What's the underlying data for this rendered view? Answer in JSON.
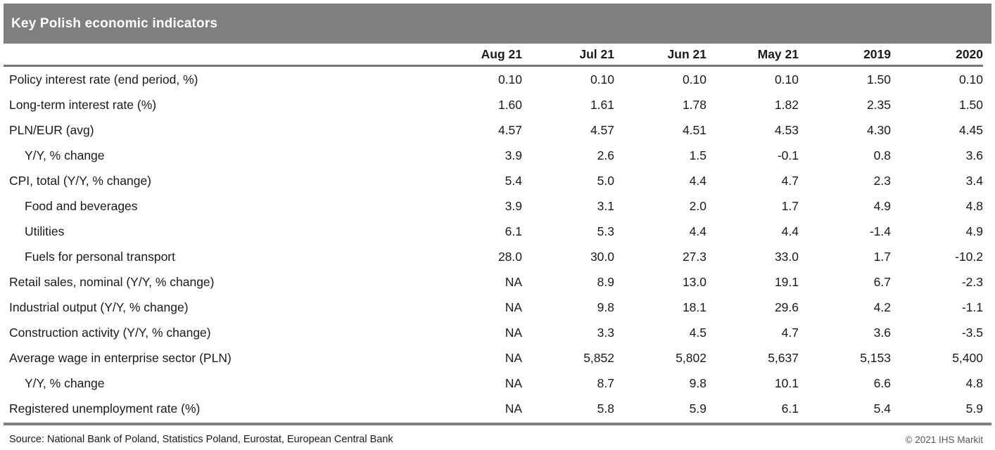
{
  "title": "Key Polish economic indicators",
  "colors": {
    "title_bar": "#7f7f7f",
    "rule_line": "#767676",
    "text": "#1a1a1a",
    "copyright": "#595959"
  },
  "table": {
    "columns": [
      "Aug 21",
      "Jul 21",
      "Jun 21",
      "May 21",
      "2019",
      "2020"
    ],
    "rows": [
      {
        "label": "Policy interest rate (end period, %)",
        "indent": false,
        "values": [
          "0.10",
          "0.10",
          "0.10",
          "0.10",
          "1.50",
          "0.10"
        ]
      },
      {
        "label": "Long-term interest rate (%)",
        "indent": false,
        "values": [
          "1.60",
          "1.61",
          "1.78",
          "1.82",
          "2.35",
          "1.50"
        ]
      },
      {
        "label": "PLN/EUR (avg)",
        "indent": false,
        "values": [
          "4.57",
          "4.57",
          "4.51",
          "4.53",
          "4.30",
          "4.45"
        ]
      },
      {
        "label": "Y/Y, % change",
        "indent": true,
        "values": [
          "3.9",
          "2.6",
          "1.5",
          "-0.1",
          "0.8",
          "3.6"
        ]
      },
      {
        "label": "CPI, total (Y/Y, % change)",
        "indent": false,
        "values": [
          "5.4",
          "5.0",
          "4.4",
          "4.7",
          "2.3",
          "3.4"
        ]
      },
      {
        "label": "Food and beverages",
        "indent": true,
        "values": [
          "3.9",
          "3.1",
          "2.0",
          "1.7",
          "4.9",
          "4.8"
        ]
      },
      {
        "label": "Utilities",
        "indent": true,
        "values": [
          "6.1",
          "5.3",
          "4.4",
          "4.4",
          "-1.4",
          "4.9"
        ]
      },
      {
        "label": "Fuels for personal transport",
        "indent": true,
        "values": [
          "28.0",
          "30.0",
          "27.3",
          "33.0",
          "1.7",
          "-10.2"
        ]
      },
      {
        "label": "Retail sales, nominal (Y/Y, % change)",
        "indent": false,
        "values": [
          "NA",
          "8.9",
          "13.0",
          "19.1",
          "6.7",
          "-2.3"
        ]
      },
      {
        "label": "Industrial output (Y/Y, % change)",
        "indent": false,
        "values": [
          "NA",
          "9.8",
          "18.1",
          "29.6",
          "4.2",
          "-1.1"
        ]
      },
      {
        "label": "Construction activity (Y/Y, % change)",
        "indent": false,
        "values": [
          "NA",
          "3.3",
          "4.5",
          "4.7",
          "3.6",
          "-3.5"
        ]
      },
      {
        "label": "Average wage in enterprise sector (PLN)",
        "indent": false,
        "values": [
          "NA",
          "5,852",
          "5,802",
          "5,637",
          "5,153",
          "5,400"
        ]
      },
      {
        "label": "Y/Y, % change",
        "indent": true,
        "values": [
          "NA",
          "8.7",
          "9.8",
          "10.1",
          "6.6",
          "4.8"
        ]
      },
      {
        "label": "Registered unemployment rate (%)",
        "indent": false,
        "values": [
          "NA",
          "5.8",
          "5.9",
          "6.1",
          "5.4",
          "5.9"
        ]
      }
    ]
  },
  "footer": {
    "source": "Source: National Bank of Poland, Statistics Poland, Eurostat, European Central Bank",
    "copyright": "© 2021 IHS Markit"
  }
}
